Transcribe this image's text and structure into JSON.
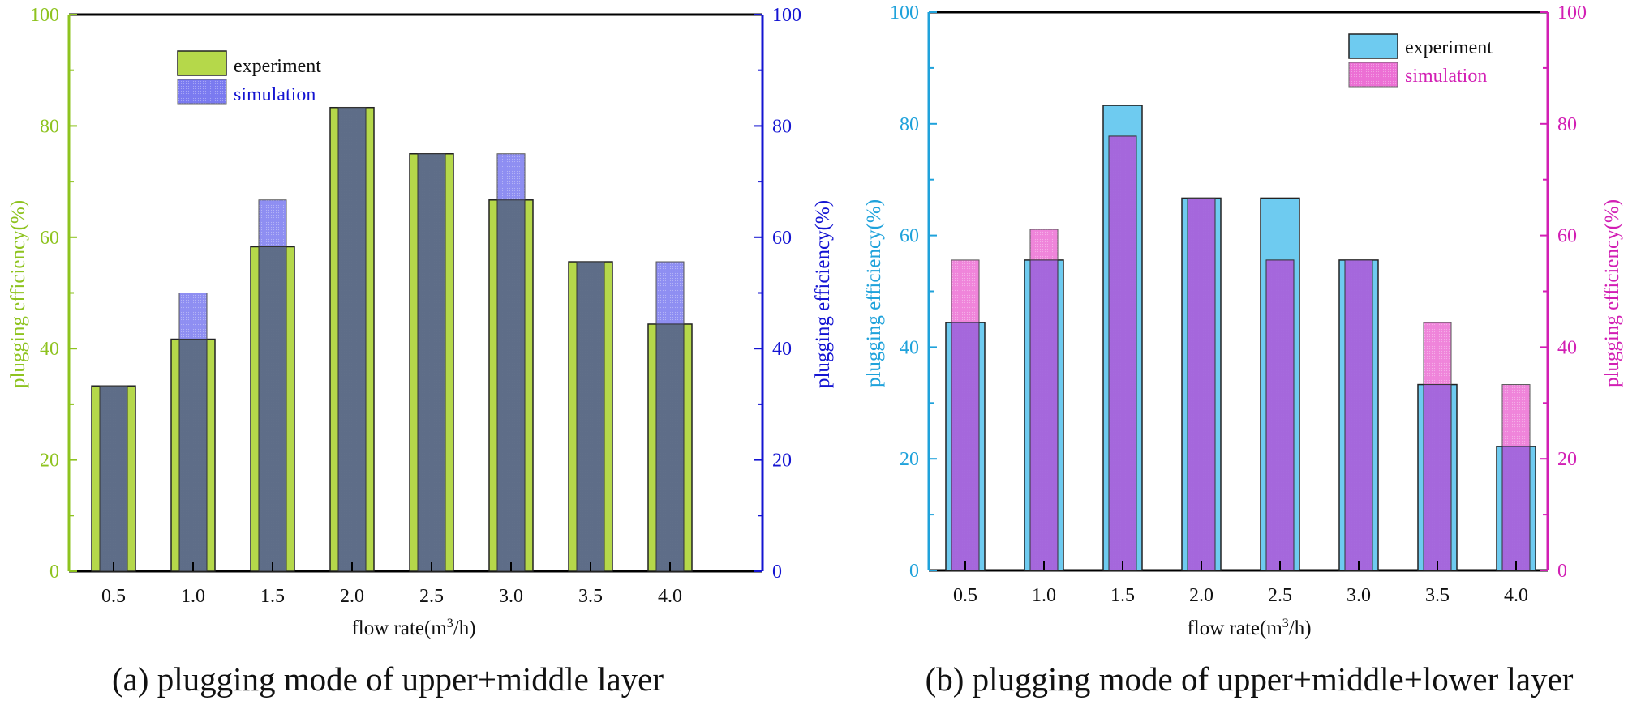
{
  "chart_data": [
    {
      "type": "bar",
      "categories": [
        "0.5",
        "1.0",
        "1.5",
        "2.0",
        "2.5",
        "3.0",
        "3.5",
        "4.0"
      ],
      "xlabel": "flow rate(m³/h)",
      "ylabel_left": "plugging efficiency(%)",
      "ylabel_right": "plugging efficiency(%)",
      "ylim": [
        0,
        100
      ],
      "y_ticks": [
        "0",
        "20",
        "40",
        "60",
        "80",
        "100"
      ],
      "legend_position": "top-left",
      "caption": "(a) plugging mode of upper+middle layer",
      "colors": {
        "left_axis": "#8ec31f",
        "right_axis": "#1414d2"
      },
      "series": [
        {
          "name": "experiment",
          "values": [
            33.3,
            41.7,
            58.3,
            83.3,
            75.0,
            66.7,
            55.6,
            44.4
          ],
          "color": "#b5d84a",
          "axis": "left"
        },
        {
          "name": "simulation",
          "values": [
            33.3,
            50.0,
            66.7,
            83.3,
            75.0,
            75.0,
            55.6,
            55.6
          ],
          "color": "#7a7af0",
          "axis": "right"
        }
      ]
    },
    {
      "type": "bar",
      "categories": [
        "0.5",
        "1.0",
        "1.5",
        "2.0",
        "2.5",
        "3.0",
        "3.5",
        "4.0"
      ],
      "xlabel": "flow rate(m³/h)",
      "ylabel_left": "plugging efficiency(%)",
      "ylabel_right": "plugging efficiency(%)",
      "ylim": [
        0,
        100
      ],
      "y_ticks": [
        "0",
        "20",
        "40",
        "60",
        "80",
        "100"
      ],
      "legend_position": "top-right",
      "caption": "(b) plugging mode of upper+middle+lower layer",
      "colors": {
        "left_axis": "#1fa2db",
        "right_axis": "#d21fb4"
      },
      "series": [
        {
          "name": "experiment",
          "values": [
            44.4,
            55.6,
            83.3,
            66.7,
            66.7,
            55.6,
            33.3,
            22.2
          ],
          "color": "#6ecbf0",
          "axis": "left"
        },
        {
          "name": "simulation",
          "values": [
            55.6,
            61.1,
            77.8,
            66.7,
            55.6,
            55.6,
            44.4,
            33.3
          ],
          "color": "#ec6fd4",
          "axis": "right"
        }
      ]
    }
  ]
}
